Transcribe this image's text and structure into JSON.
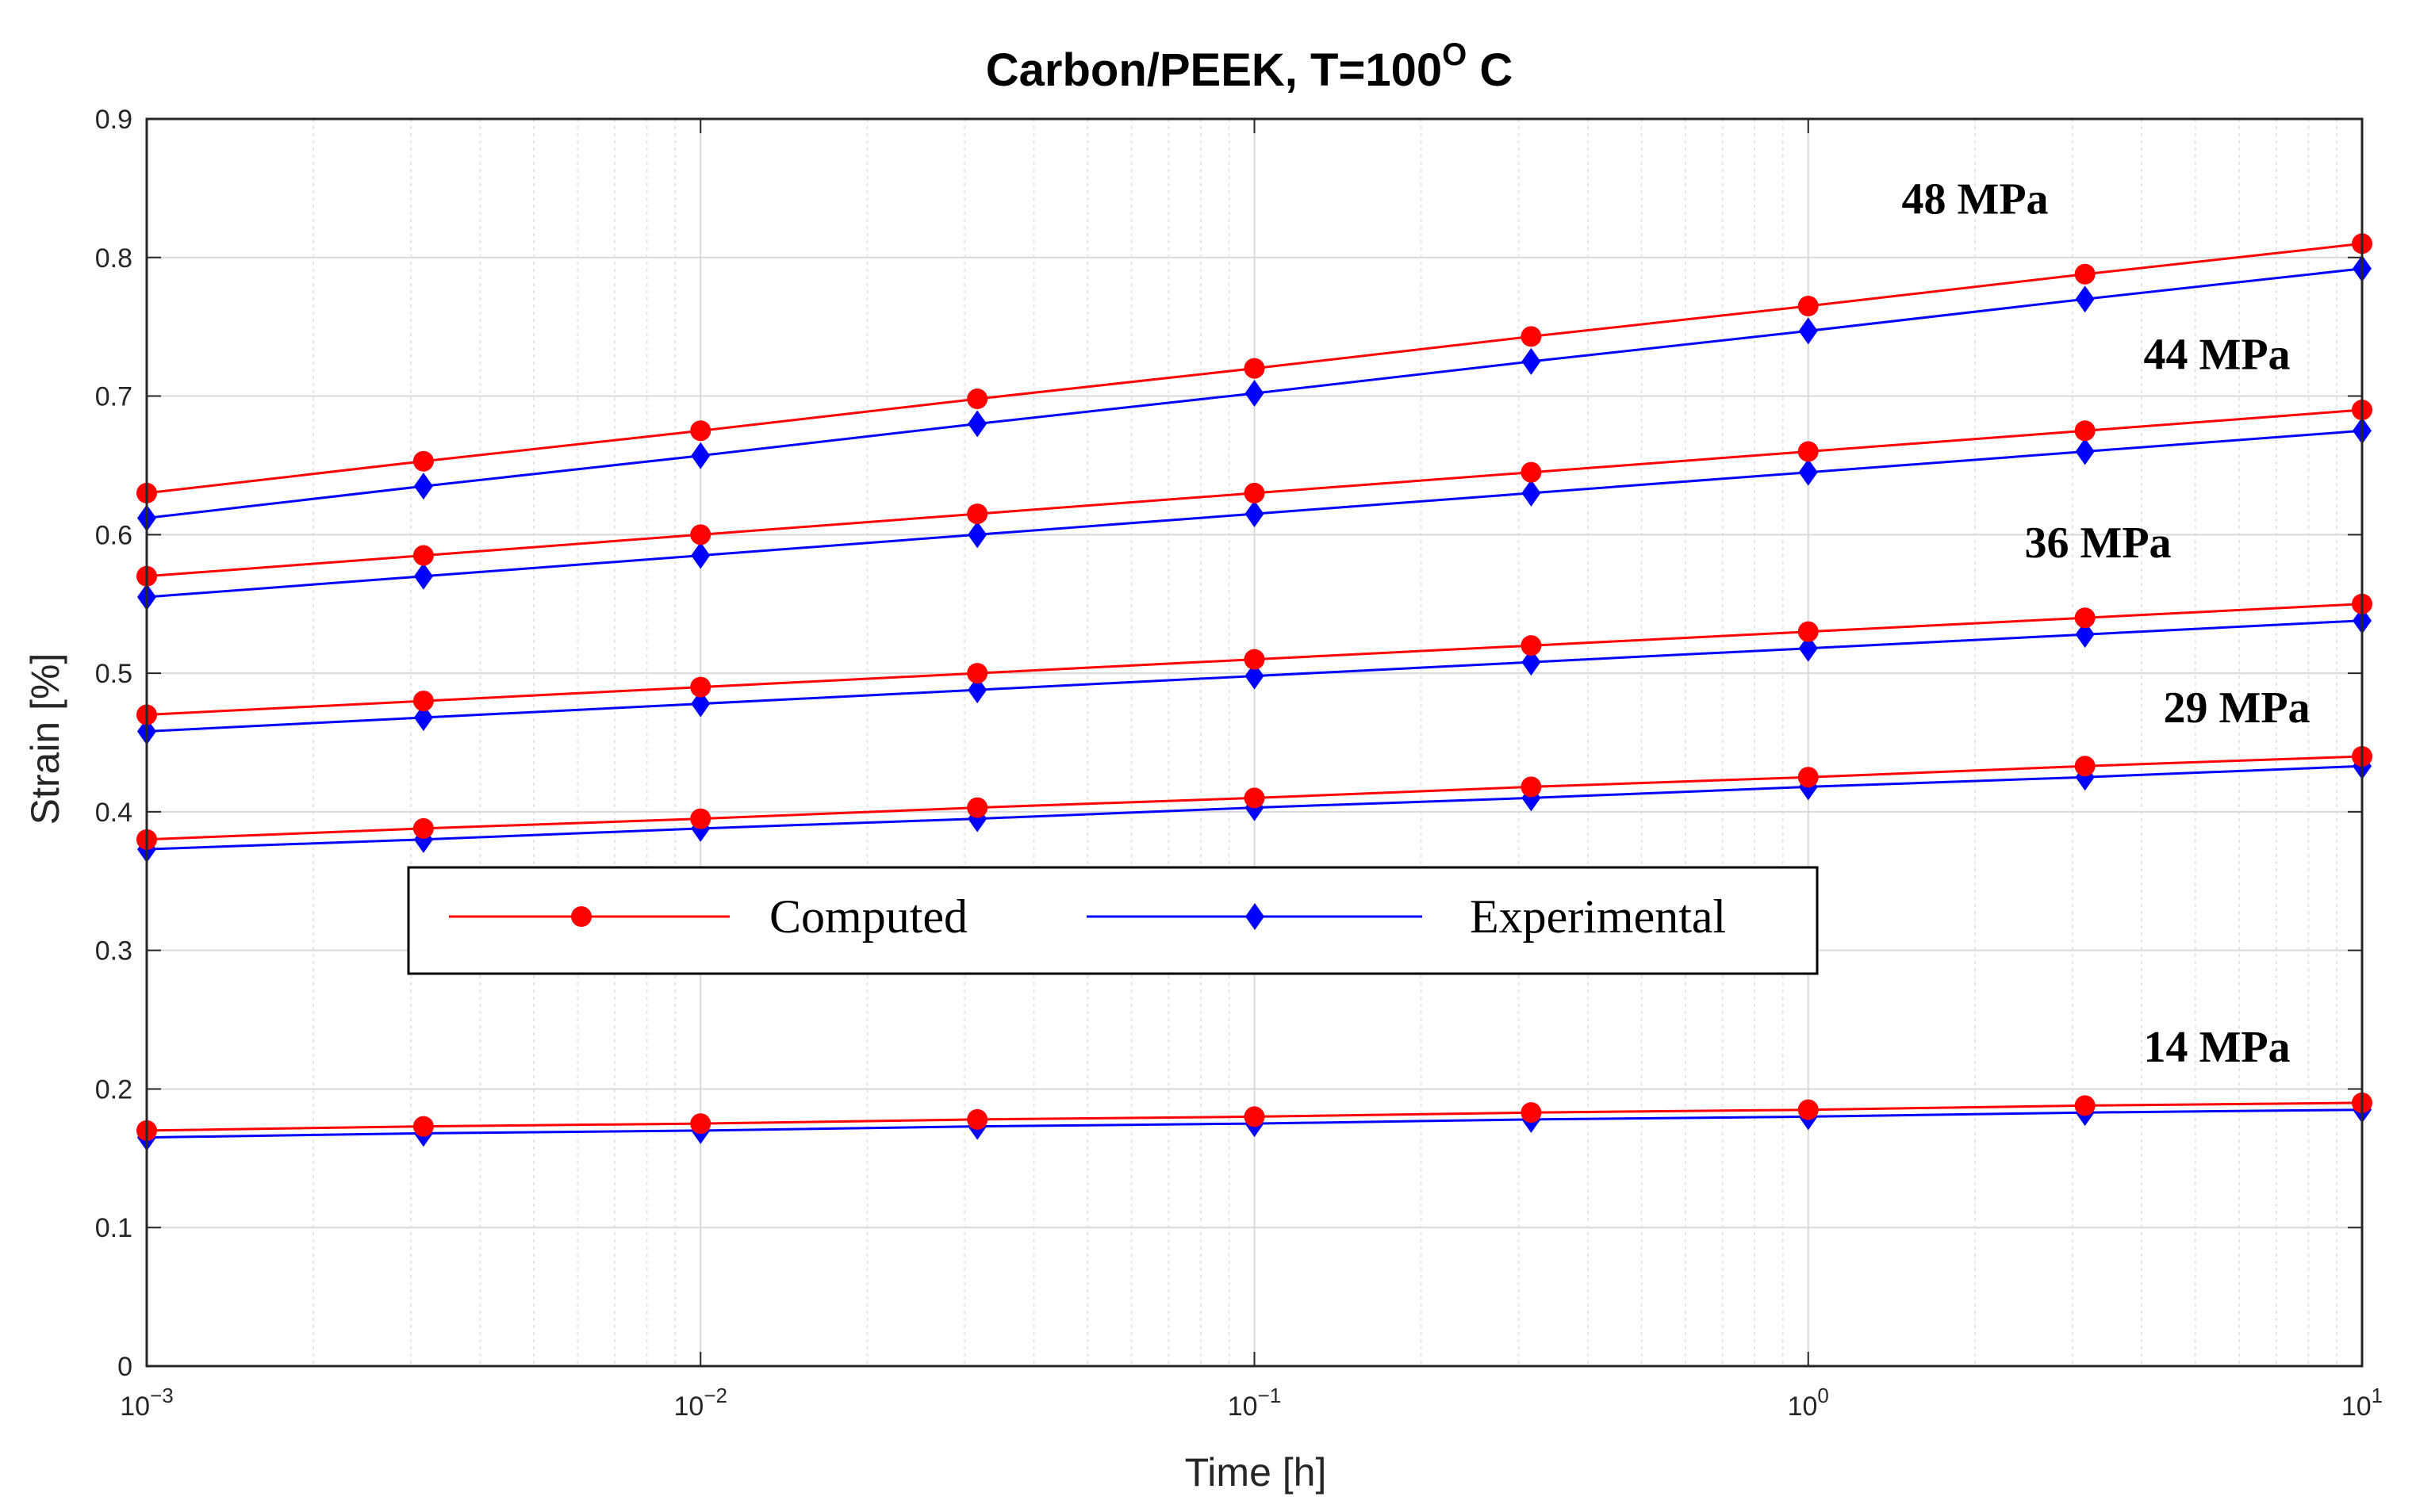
{
  "chart_data": {
    "type": "line",
    "title": "Carbon/PEEK, T=100",
    "title_superscript": "O",
    "title_suffix": " C",
    "xlabel": "Time [h]",
    "ylabel": "Strain [%]",
    "xscale": "log",
    "xlim": [
      0.001,
      10
    ],
    "ylim": [
      0,
      0.9
    ],
    "grid": true,
    "x": [
      0.001,
      0.00316,
      0.01,
      0.0316,
      0.1,
      0.316,
      1,
      3.16,
      10
    ],
    "x_ticks": [
      {
        "base": "10",
        "exp": "−3"
      },
      {
        "base": "10",
        "exp": "−2"
      },
      {
        "base": "10",
        "exp": "−1"
      },
      {
        "base": "10",
        "exp": "0"
      },
      {
        "base": "10",
        "exp": "1"
      }
    ],
    "y_ticks": [
      "0",
      "0.1",
      "0.2",
      "0.3",
      "0.4",
      "0.5",
      "0.6",
      "0.7",
      "0.8",
      "0.9"
    ],
    "legend": {
      "placement": "center-left",
      "entries": [
        {
          "label": "Computed",
          "color": "#ff0000",
          "marker": "circle"
        },
        {
          "label": "Experimental",
          "color": "#0000ff",
          "marker": "diamond"
        }
      ]
    },
    "groups": [
      {
        "label": "48 MPa",
        "computed": [
          0.63,
          0.653,
          0.675,
          0.698,
          0.72,
          0.743,
          0.765,
          0.788,
          0.81
        ],
        "experimental": [
          0.612,
          0.635,
          0.657,
          0.68,
          0.702,
          0.725,
          0.747,
          0.77,
          0.792
        ]
      },
      {
        "label": "44 MPa",
        "computed": [
          0.57,
          0.585,
          0.6,
          0.615,
          0.63,
          0.645,
          0.66,
          0.675,
          0.69
        ],
        "experimental": [
          0.555,
          0.57,
          0.585,
          0.6,
          0.615,
          0.63,
          0.645,
          0.66,
          0.675
        ]
      },
      {
        "label": "36 MPa",
        "computed": [
          0.47,
          0.48,
          0.49,
          0.5,
          0.51,
          0.52,
          0.53,
          0.54,
          0.55
        ],
        "experimental": [
          0.458,
          0.468,
          0.478,
          0.488,
          0.498,
          0.508,
          0.518,
          0.528,
          0.538
        ]
      },
      {
        "label": "29 MPa",
        "computed": [
          0.38,
          0.388,
          0.395,
          0.403,
          0.41,
          0.418,
          0.425,
          0.433,
          0.44
        ],
        "experimental": [
          0.373,
          0.38,
          0.388,
          0.395,
          0.403,
          0.41,
          0.418,
          0.425,
          0.433
        ]
      },
      {
        "label": "14 MPa",
        "computed": [
          0.17,
          0.173,
          0.175,
          0.178,
          0.18,
          0.183,
          0.185,
          0.188,
          0.19
        ],
        "experimental": [
          0.165,
          0.168,
          0.17,
          0.173,
          0.175,
          0.178,
          0.18,
          0.183,
          0.185
        ]
      }
    ]
  }
}
